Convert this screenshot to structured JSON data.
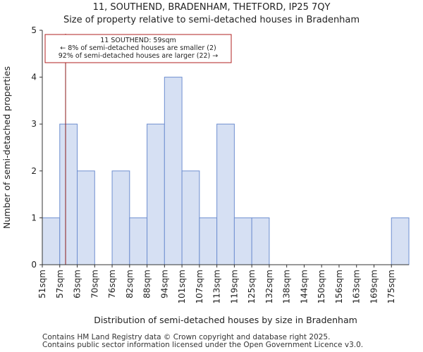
{
  "titles": {
    "line1": "11, SOUTHEND, BRADENHAM, THETFORD, IP25 7QY",
    "line2": "Size of property relative to semi-detached houses in Bradenham"
  },
  "footer": {
    "line1": "Contains HM Land Registry data © Crown copyright and database right 2025.",
    "line2": "Contains public sector information licensed under the Open Government Licence v3.0."
  },
  "colors": {
    "bar_fill": "#d6e0f3",
    "bar_stroke": "#6f8fd0",
    "marker": "#8b1a1a",
    "annotation_border": "#b22222"
  },
  "chart_data": {
    "type": "bar",
    "title": "Size of property relative to semi-detached houses in Bradenham",
    "xlabel": "Distribution of semi-detached houses by size in Bradenham",
    "ylabel": "Number of semi-detached properties",
    "categories": [
      "51sqm",
      "57sqm",
      "63sqm",
      "70sqm",
      "76sqm",
      "82sqm",
      "88sqm",
      "94sqm",
      "101sqm",
      "107sqm",
      "113sqm",
      "119sqm",
      "125sqm",
      "132sqm",
      "138sqm",
      "144sqm",
      "150sqm",
      "156sqm",
      "163sqm",
      "169sqm",
      "175sqm"
    ],
    "values": [
      1,
      3,
      2,
      0,
      2,
      1,
      3,
      4,
      2,
      1,
      3,
      1,
      1,
      0,
      0,
      0,
      0,
      0,
      0,
      0,
      1
    ],
    "ylim": [
      0,
      5
    ],
    "yticks": [
      0,
      1,
      2,
      3,
      4,
      5
    ],
    "grid": false,
    "marker_value": 59,
    "annotation": {
      "line1": "11 SOUTHEND: 59sqm",
      "line2": "← 8% of semi-detached houses are smaller (2)",
      "line3": "92% of semi-detached houses are larger (22) →"
    }
  }
}
